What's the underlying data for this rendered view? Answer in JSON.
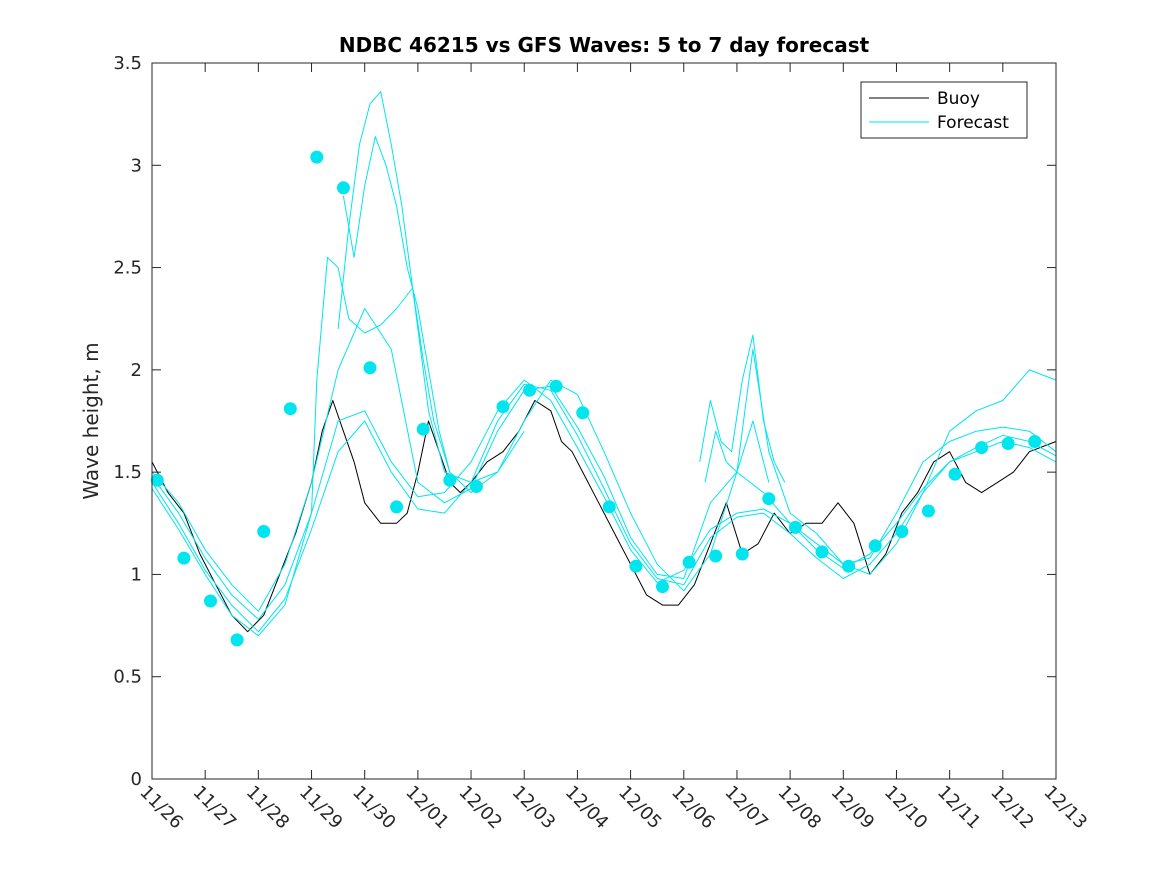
{
  "chart_data": {
    "type": "line",
    "title": "NDBC 46215 vs GFS Waves: 5 to 7 day forecast",
    "xlabel": "",
    "ylabel": "Wave height, m",
    "xlim": [
      0,
      17
    ],
    "ylim": [
      0,
      3.5
    ],
    "x_ticks": [
      0,
      1,
      2,
      3,
      4,
      5,
      6,
      7,
      8,
      9,
      10,
      11,
      12,
      13,
      14,
      15,
      16,
      17
    ],
    "x_tick_labels": [
      "11/26",
      "11/27",
      "11/28",
      "11/29",
      "11/30",
      "12/01",
      "12/02",
      "12/03",
      "12/04",
      "12/05",
      "12/06",
      "12/07",
      "12/08",
      "12/09",
      "12/10",
      "12/11",
      "12/12",
      "12/13"
    ],
    "y_ticks": [
      0,
      0.5,
      1,
      1.5,
      2,
      2.5,
      3,
      3.5
    ],
    "y_tick_labels": [
      "0",
      "0.5",
      "1",
      "1.5",
      "2",
      "2.5",
      "3",
      "3.5"
    ],
    "legend": {
      "location": "top-right",
      "entries": [
        "Buoy",
        "Forecast"
      ]
    },
    "colors": {
      "buoy": "#000000",
      "forecast": "#00e5ee",
      "axis": "#262626"
    },
    "series": [
      {
        "name": "Buoy",
        "color": "#000000",
        "x": [
          0,
          0.3,
          0.6,
          0.9,
          1.2,
          1.5,
          1.8,
          2.1,
          2.4,
          2.7,
          3.0,
          3.2,
          3.4,
          3.6,
          3.8,
          4.0,
          4.3,
          4.6,
          4.8,
          5.0,
          5.2,
          5.4,
          5.6,
          5.8,
          6.0,
          6.3,
          6.6,
          6.9,
          7.2,
          7.5,
          7.7,
          7.9,
          8.1,
          8.4,
          8.7,
          9.0,
          9.3,
          9.6,
          9.9,
          10.2,
          10.5,
          10.8,
          11.1,
          11.4,
          11.7,
          12.0,
          12.3,
          12.6,
          12.9,
          13.2,
          13.5,
          13.8,
          14.1,
          14.4,
          14.7,
          15.0,
          15.3,
          15.6,
          15.9,
          16.2,
          16.5,
          17.0
        ],
        "y": [
          1.55,
          1.4,
          1.3,
          1.1,
          0.95,
          0.8,
          0.72,
          0.8,
          1.0,
          1.2,
          1.45,
          1.7,
          1.85,
          1.7,
          1.55,
          1.35,
          1.25,
          1.25,
          1.3,
          1.5,
          1.75,
          1.6,
          1.45,
          1.4,
          1.45,
          1.55,
          1.6,
          1.7,
          1.85,
          1.8,
          1.65,
          1.6,
          1.5,
          1.35,
          1.2,
          1.05,
          0.9,
          0.85,
          0.85,
          0.95,
          1.15,
          1.35,
          1.1,
          1.15,
          1.3,
          1.2,
          1.25,
          1.25,
          1.35,
          1.25,
          1.0,
          1.1,
          1.3,
          1.4,
          1.55,
          1.6,
          1.45,
          1.4,
          1.45,
          1.5,
          1.6,
          1.65
        ]
      },
      {
        "name": "Forecast",
        "color": "#00e5ee",
        "x": [
          0,
          0.5,
          1.0,
          1.5,
          2.0,
          2.5,
          3.0,
          3.5,
          4.0,
          4.5,
          5.0,
          5.5,
          6.0,
          6.5,
          7.0,
          7.5,
          8.0,
          8.5,
          9.0,
          9.5,
          10.0,
          10.5,
          11.0,
          11.5,
          12.0,
          12.5,
          13.0,
          13.5,
          14.0,
          14.5,
          15.0,
          15.5,
          16.0,
          16.5,
          17.0
        ],
        "y": [
          1.48,
          1.3,
          1.08,
          0.9,
          0.78,
          0.95,
          1.3,
          1.75,
          1.8,
          1.55,
          1.38,
          1.4,
          1.55,
          1.8,
          1.95,
          1.85,
          1.62,
          1.38,
          1.12,
          0.96,
          1.02,
          1.22,
          1.3,
          1.32,
          1.25,
          1.12,
          1.03,
          1.1,
          1.25,
          1.42,
          1.55,
          1.6,
          1.65,
          1.62,
          1.55
        ]
      },
      {
        "name": "Forecast",
        "color": "#00e5ee",
        "x": [
          0,
          0.5,
          1.0,
          1.5,
          2.0,
          2.5,
          3.0,
          3.5,
          4.0,
          4.5,
          5.0,
          5.5,
          6.0,
          6.5,
          7.0,
          7.5,
          8.0,
          8.5,
          9.0,
          9.5,
          10.0,
          10.5,
          11.0,
          11.5,
          12.0,
          12.5,
          13.0,
          13.5,
          14.0,
          14.5,
          15.0,
          15.5,
          16.0,
          16.5,
          17.0
        ],
        "y": [
          1.45,
          1.25,
          1.02,
          0.85,
          0.72,
          0.88,
          1.22,
          1.6,
          1.75,
          1.5,
          1.32,
          1.3,
          1.45,
          1.75,
          1.93,
          1.9,
          1.68,
          1.42,
          1.15,
          0.98,
          0.95,
          1.18,
          1.28,
          1.3,
          1.2,
          1.08,
          0.98,
          1.05,
          1.2,
          1.4,
          1.55,
          1.62,
          1.68,
          1.65,
          1.58
        ]
      },
      {
        "name": "Forecast",
        "color": "#00e5ee",
        "x": [
          0,
          0.5,
          1.0,
          1.5,
          2.0,
          2.5,
          3.0,
          3.5,
          4.0,
          4.5,
          5.0,
          5.5,
          6.0,
          6.5,
          7.0,
          7.5,
          8.0,
          8.5,
          9.0,
          9.5,
          10.0,
          10.5,
          11.0,
          11.5,
          12.0,
          12.5,
          13.0,
          13.5,
          14.0,
          14.5,
          15.0,
          15.5,
          16.0,
          16.5,
          17.0
        ],
        "y": [
          1.5,
          1.35,
          1.12,
          0.95,
          0.82,
          1.05,
          1.45,
          2.0,
          2.3,
          2.1,
          1.45,
          1.35,
          1.42,
          1.7,
          1.9,
          1.92,
          1.72,
          1.48,
          1.18,
          1.0,
          0.98,
          1.35,
          1.5,
          1.4,
          1.25,
          1.15,
          1.05,
          1.08,
          1.3,
          1.55,
          1.65,
          1.7,
          1.72,
          1.7,
          1.6
        ]
      },
      {
        "name": "Forecast",
        "color": "#00e5ee",
        "x": [
          0,
          0.5,
          1.0,
          1.5,
          2.0,
          2.5,
          3.0,
          3.1,
          3.3,
          3.5,
          3.7,
          4.0,
          4.3,
          4.6,
          4.9,
          5.2,
          5.5,
          6.0,
          6.5,
          7.0,
          7.5,
          8.0,
          8.5,
          9.0,
          9.5,
          10.0,
          10.5,
          11.0,
          11.3,
          11.6,
          12.0,
          12.5,
          13.0,
          13.5,
          14.0,
          14.5,
          15.0,
          15.5,
          16.0,
          16.5,
          17.0
        ],
        "y": [
          1.42,
          1.22,
          1.0,
          0.8,
          0.7,
          0.85,
          1.3,
          1.95,
          2.55,
          2.5,
          2.25,
          2.18,
          2.22,
          2.3,
          2.4,
          1.8,
          1.5,
          1.45,
          1.5,
          1.75,
          1.95,
          1.88,
          1.6,
          1.3,
          1.05,
          0.92,
          1.1,
          1.5,
          2.1,
          1.6,
          1.3,
          1.2,
          1.05,
          1.0,
          1.15,
          1.4,
          1.7,
          1.8,
          1.85,
          2.0,
          1.95
        ]
      },
      {
        "name": "Forecast",
        "color": "#00e5ee",
        "x": [
          3.5,
          3.7,
          3.9,
          4.1,
          4.3,
          4.5,
          4.7,
          4.9,
          5.1,
          5.3,
          5.6,
          6.0,
          6.5,
          7.0
        ],
        "y": [
          2.2,
          2.7,
          3.1,
          3.3,
          3.36,
          3.1,
          2.8,
          2.4,
          2.05,
          1.75,
          1.5,
          1.4,
          1.5,
          1.7
        ]
      },
      {
        "name": "Forecast",
        "color": "#00e5ee",
        "x": [
          3.6,
          3.8,
          4.0,
          4.2,
          4.4,
          4.6,
          4.8,
          5.0,
          5.2,
          5.4,
          5.6
        ],
        "y": [
          2.85,
          2.55,
          2.9,
          3.14,
          3.0,
          2.8,
          2.5,
          2.3,
          2.0,
          1.7,
          1.5
        ]
      },
      {
        "name": "Forecast",
        "color": "#00e5ee",
        "x": [
          10.3,
          10.5,
          10.7,
          10.9,
          11.1,
          11.3,
          11.5,
          11.7,
          11.9
        ],
        "y": [
          1.55,
          1.85,
          1.65,
          1.6,
          1.95,
          2.17,
          1.75,
          1.55,
          1.45
        ]
      },
      {
        "name": "Forecast",
        "color": "#00e5ee",
        "x": [
          10.4,
          10.6,
          10.8,
          11.0,
          11.3,
          11.6
        ],
        "y": [
          1.45,
          1.7,
          1.55,
          1.5,
          1.75,
          1.45
        ]
      },
      {
        "name": "Forecast (daily markers)",
        "color": "#00e5ee",
        "marker": "circle",
        "x": [
          0.1,
          0.6,
          1.1,
          1.6,
          2.1,
          2.6,
          3.1,
          3.6,
          4.1,
          4.6,
          5.1,
          5.6,
          6.1,
          6.6,
          7.1,
          7.6,
          8.1,
          8.6,
          9.1,
          9.6,
          10.1,
          10.6,
          11.1,
          11.6,
          12.1,
          12.6,
          13.1,
          13.6,
          14.1,
          14.6,
          15.1,
          15.6,
          16.1,
          16.6
        ],
        "y": [
          1.46,
          1.08,
          0.87,
          0.68,
          1.21,
          1.81,
          3.04,
          2.89,
          2.01,
          1.33,
          1.71,
          1.46,
          1.43,
          1.82,
          1.9,
          1.92,
          1.79,
          1.33,
          1.04,
          0.94,
          1.06,
          1.09,
          1.1,
          1.37,
          1.23,
          1.11,
          1.04,
          1.14,
          1.21,
          1.31,
          1.49,
          1.62,
          1.64,
          1.65
        ]
      }
    ]
  }
}
